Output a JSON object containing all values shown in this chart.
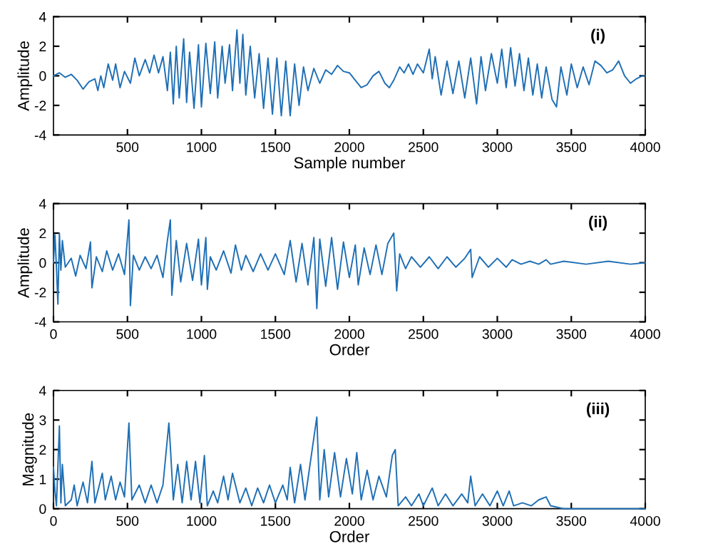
{
  "chart_data": [
    {
      "type": "line",
      "xlabel": "Sample number",
      "ylabel": "Amplitude",
      "annotations": [
        "(i)"
      ],
      "xlim": [
        0,
        4000
      ],
      "xticks": [
        500,
        1000,
        1500,
        2000,
        2500,
        3000,
        3500,
        4000
      ],
      "ylim": [
        -4,
        4
      ],
      "yticks": [
        -4,
        -2,
        0,
        2,
        4
      ],
      "grid": false,
      "series": [
        {
          "color": "#1f6fb5",
          "x": [
            0,
            40,
            80,
            120,
            160,
            200,
            240,
            280,
            300,
            320,
            340,
            370,
            400,
            420,
            450,
            480,
            520,
            550,
            580,
            620,
            650,
            680,
            710,
            740,
            770,
            790,
            810,
            830,
            850,
            880,
            900,
            920,
            950,
            980,
            1000,
            1030,
            1060,
            1090,
            1110,
            1140,
            1160,
            1190,
            1210,
            1240,
            1260,
            1280,
            1300,
            1330,
            1360,
            1390,
            1420,
            1450,
            1480,
            1510,
            1540,
            1570,
            1600,
            1630,
            1660,
            1690,
            1720,
            1760,
            1800,
            1840,
            1880,
            1920,
            1960,
            2000,
            2040,
            2080,
            2120,
            2160,
            2200,
            2240,
            2270,
            2300,
            2340,
            2370,
            2400,
            2430,
            2460,
            2500,
            2540,
            2560,
            2580,
            2620,
            2660,
            2700,
            2740,
            2780,
            2820,
            2860,
            2890,
            2920,
            2960,
            3000,
            3030,
            3060,
            3090,
            3120,
            3150,
            3180,
            3210,
            3240,
            3270,
            3300,
            3330,
            3370,
            3400,
            3430,
            3470,
            3500,
            3540,
            3580,
            3620,
            3660,
            3700,
            3740,
            3780,
            3820,
            3860,
            3900,
            3940,
            3980,
            4000
          ],
          "values": [
            0,
            0.2,
            -0.1,
            0.1,
            -0.3,
            -0.9,
            -0.4,
            -0.2,
            -1.0,
            0.0,
            -0.8,
            0.8,
            -0.3,
            0.8,
            -0.8,
            0.3,
            -0.5,
            1.2,
            0.0,
            1.1,
            0.2,
            1.4,
            0.2,
            1.3,
            -1.0,
            1.6,
            -1.9,
            2.0,
            -1.5,
            2.5,
            -1.8,
            1.6,
            -2.2,
            2.1,
            -2.1,
            2.2,
            -1.2,
            2.3,
            -1.5,
            2.0,
            -0.5,
            2.1,
            -1.0,
            3.1,
            -0.5,
            2.8,
            -1.3,
            2.0,
            -1.5,
            1.5,
            -2.2,
            1.2,
            -2.6,
            1.2,
            -2.7,
            1.0,
            -2.7,
            0.8,
            -2.0,
            0.6,
            -1.0,
            0.5,
            -0.5,
            0.4,
            0.1,
            0.7,
            0.3,
            0.2,
            -0.3,
            -0.8,
            -0.6,
            0.0,
            0.3,
            -0.5,
            -0.8,
            -0.3,
            0.6,
            0.2,
            0.8,
            0.1,
            0.8,
            0.2,
            1.8,
            -0.2,
            1.3,
            -1.3,
            1.0,
            -1.2,
            1.0,
            -1.5,
            1.2,
            -1.9,
            1.3,
            -1.0,
            1.5,
            -0.5,
            1.8,
            -0.8,
            1.9,
            -0.7,
            1.5,
            -1.0,
            1.2,
            -1.3,
            0.8,
            -1.5,
            0.6,
            -1.6,
            -2.1,
            0.6,
            -1.3,
            0.8,
            -0.8,
            0.6,
            -0.6,
            1.0,
            0.7,
            0.2,
            0.4,
            1.0,
            0.0,
            -0.5,
            -0.2,
            0.0,
            0.0
          ]
        }
      ]
    },
    {
      "type": "line",
      "xlabel": "Order",
      "ylabel": "Amplitude",
      "annotations": [
        "(ii)"
      ],
      "xlim": [
        0,
        4000
      ],
      "xticks": [
        0,
        500,
        1000,
        1500,
        2000,
        2500,
        3000,
        3500,
        4000
      ],
      "ylim": [
        -4,
        4
      ],
      "yticks": [
        -4,
        -2,
        0,
        2,
        4
      ],
      "grid": false,
      "series": [
        {
          "color": "#1f6fb5",
          "x": [
            0,
            10,
            20,
            30,
            40,
            50,
            60,
            80,
            120,
            150,
            180,
            220,
            250,
            260,
            290,
            330,
            360,
            400,
            440,
            480,
            510,
            520,
            540,
            580,
            620,
            660,
            700,
            740,
            770,
            790,
            800,
            830,
            860,
            900,
            940,
            980,
            1000,
            1030,
            1040,
            1060,
            1100,
            1150,
            1200,
            1230,
            1270,
            1300,
            1350,
            1400,
            1450,
            1500,
            1560,
            1600,
            1640,
            1680,
            1720,
            1760,
            1780,
            1800,
            1840,
            1880,
            1920,
            1960,
            2000,
            2040,
            2060,
            2100,
            2140,
            2180,
            2220,
            2260,
            2300,
            2320,
            2340,
            2380,
            2420,
            2480,
            2540,
            2600,
            2660,
            2720,
            2780,
            2820,
            2830,
            2880,
            2940,
            3000,
            3060,
            3100,
            3160,
            3220,
            3280,
            3330,
            3360,
            3450,
            3600,
            3750,
            3900,
            4000
          ],
          "values": [
            0,
            1.9,
            -0.3,
            -2.8,
            2.0,
            -0.5,
            1.5,
            -0.3,
            0.3,
            -0.9,
            0.5,
            -0.4,
            1.4,
            -1.7,
            0.4,
            -0.6,
            0.8,
            -0.5,
            0.6,
            -0.8,
            2.9,
            -2.9,
            0.5,
            -0.5,
            0.4,
            -0.4,
            0.5,
            -1.0,
            1.5,
            2.9,
            -2.2,
            1.5,
            -1.3,
            1.3,
            -1.2,
            1.6,
            -1.5,
            1.7,
            -1.8,
            0.4,
            -0.5,
            0.8,
            -0.7,
            1.2,
            -0.5,
            0.5,
            -0.6,
            0.6,
            -0.5,
            0.6,
            -0.8,
            1.5,
            -1.3,
            1.3,
            -1.5,
            1.7,
            -3.1,
            1.6,
            -1.6,
            1.7,
            -1.8,
            1.4,
            -1.0,
            1.2,
            -1.5,
            1.0,
            -0.8,
            1.2,
            -0.8,
            1.3,
            2.0,
            -1.9,
            0.6,
            -0.4,
            0.4,
            -0.3,
            0.4,
            -0.4,
            0.4,
            -0.3,
            0.3,
            0.9,
            -1.0,
            0.4,
            -0.3,
            0.3,
            -0.3,
            0.2,
            -0.1,
            0.1,
            -0.1,
            0.2,
            -0.1,
            0.1,
            -0.1,
            0.1,
            -0.1,
            0
          ]
        }
      ]
    },
    {
      "type": "line",
      "xlabel": "Order",
      "ylabel": "Magnitude",
      "annotations": [
        "(iii)"
      ],
      "xlim": [
        0,
        4000
      ],
      "xticks": [
        0,
        500,
        1000,
        1500,
        2000,
        2500,
        3000,
        3500,
        4000
      ],
      "ylim": [
        0,
        4
      ],
      "yticks": [
        0,
        1,
        2,
        3,
        4
      ],
      "grid": false,
      "series": [
        {
          "color": "#1f6fb5",
          "x": [
            0,
            10,
            20,
            40,
            50,
            60,
            80,
            120,
            140,
            160,
            200,
            230,
            260,
            280,
            330,
            350,
            390,
            420,
            450,
            480,
            510,
            530,
            580,
            620,
            660,
            700,
            740,
            780,
            790,
            810,
            840,
            870,
            900,
            930,
            960,
            990,
            1020,
            1040,
            1080,
            1110,
            1150,
            1180,
            1210,
            1260,
            1300,
            1340,
            1380,
            1420,
            1460,
            1500,
            1550,
            1580,
            1600,
            1630,
            1670,
            1700,
            1740,
            1780,
            1800,
            1830,
            1860,
            1900,
            1940,
            1980,
            2020,
            2050,
            2080,
            2120,
            2160,
            2200,
            2250,
            2290,
            2310,
            2330,
            2380,
            2420,
            2470,
            2500,
            2560,
            2600,
            2650,
            2700,
            2760,
            2800,
            2820,
            2850,
            2900,
            2950,
            3000,
            3040,
            3080,
            3110,
            3170,
            3230,
            3280,
            3330,
            3360,
            3450,
            3600,
            3750,
            3900,
            4000
          ],
          "values": [
            1.4,
            0.6,
            0.1,
            2.8,
            0.2,
            1.5,
            0.1,
            0.3,
            0.8,
            0.1,
            0.9,
            0.2,
            1.6,
            0.2,
            1.2,
            0.3,
            1.1,
            0.3,
            0.9,
            0.4,
            2.9,
            0.3,
            0.8,
            0.2,
            0.8,
            0.2,
            0.8,
            2.9,
            2.1,
            0.3,
            1.5,
            0.2,
            1.6,
            0.3,
            1.6,
            0.2,
            1.8,
            0.1,
            0.6,
            0.2,
            1.1,
            0.3,
            1.2,
            0.2,
            0.7,
            0.1,
            0.7,
            0.2,
            0.8,
            0.2,
            0.8,
            0.3,
            1.4,
            0.2,
            1.5,
            0.3,
            1.7,
            3.1,
            0.3,
            2.0,
            0.4,
            1.9,
            0.4,
            1.7,
            0.5,
            1.9,
            0.3,
            1.3,
            0.3,
            1.1,
            0.4,
            1.8,
            2.0,
            0.1,
            0.4,
            0.1,
            0.5,
            0.1,
            0.7,
            0.1,
            0.5,
            0.1,
            0.5,
            0.2,
            1.1,
            0.1,
            0.5,
            0.1,
            0.6,
            0.1,
            0.6,
            0.1,
            0.2,
            0.1,
            0.3,
            0.4,
            0.1,
            0.0,
            0.0,
            0.0,
            0.0,
            0.0
          ]
        }
      ]
    }
  ]
}
